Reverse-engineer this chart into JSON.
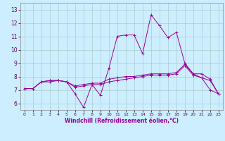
{
  "xlabel": "Windchill (Refroidissement éolien,°C)",
  "background_color": "#cceeff",
  "grid_color": "#aacccc",
  "line_color": "#990099",
  "xlim": [
    -0.5,
    23.5
  ],
  "ylim": [
    5.5,
    13.5
  ],
  "yticks": [
    6,
    7,
    8,
    9,
    10,
    11,
    12,
    13
  ],
  "xticks": [
    0,
    1,
    2,
    3,
    4,
    5,
    6,
    7,
    8,
    9,
    10,
    11,
    12,
    13,
    14,
    15,
    16,
    17,
    18,
    19,
    20,
    21,
    22,
    23
  ],
  "series1_x": [
    0,
    1,
    2,
    3,
    4,
    5,
    6,
    7,
    8,
    9,
    10,
    11,
    12,
    13,
    14,
    15,
    16,
    17,
    18,
    19,
    20,
    21,
    22,
    23
  ],
  "series1_y": [
    7.1,
    7.1,
    7.6,
    7.7,
    7.7,
    7.6,
    6.7,
    5.7,
    7.4,
    6.6,
    8.6,
    11.0,
    11.1,
    11.1,
    9.7,
    12.6,
    11.8,
    10.9,
    11.3,
    9.0,
    8.2,
    7.9,
    7.0,
    6.7
  ],
  "series2_x": [
    0,
    1,
    2,
    3,
    4,
    5,
    6,
    7,
    8,
    9,
    10,
    11,
    12,
    13,
    14,
    15,
    16,
    17,
    18,
    19,
    20,
    21,
    22,
    23
  ],
  "series2_y": [
    7.1,
    7.1,
    7.6,
    7.7,
    7.7,
    7.6,
    7.3,
    7.4,
    7.5,
    7.5,
    7.8,
    7.9,
    8.0,
    8.0,
    8.1,
    8.2,
    8.2,
    8.2,
    8.3,
    8.9,
    8.2,
    8.2,
    7.8,
    6.7
  ],
  "series3_x": [
    0,
    1,
    2,
    3,
    4,
    5,
    6,
    7,
    8,
    9,
    10,
    11,
    12,
    13,
    14,
    15,
    16,
    17,
    18,
    19,
    20,
    21,
    22,
    23
  ],
  "series3_y": [
    7.1,
    7.1,
    7.6,
    7.6,
    7.7,
    7.6,
    7.2,
    7.3,
    7.4,
    7.4,
    7.6,
    7.7,
    7.8,
    7.9,
    8.0,
    8.1,
    8.1,
    8.1,
    8.2,
    8.8,
    8.1,
    7.9,
    7.7,
    6.7
  ]
}
